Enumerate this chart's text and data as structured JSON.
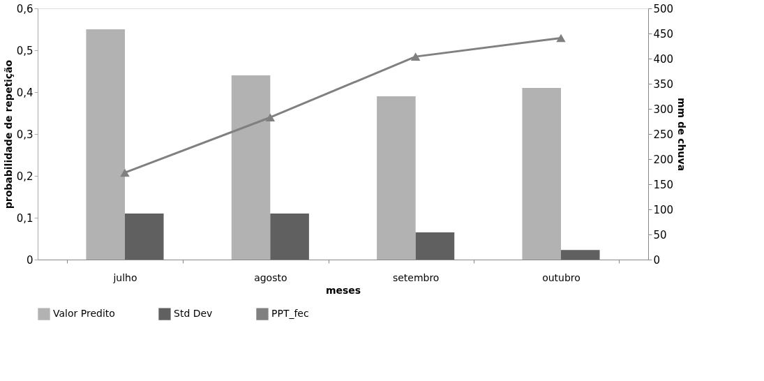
{
  "chart_data": {
    "type": "bar",
    "xlabel": "meses",
    "ylabel": "probabilidade de repetição",
    "y2label": "mm de chuva",
    "categories": [
      "julho",
      "agosto",
      "setembro",
      "outubro"
    ],
    "series": [
      {
        "name": "Valor Predito",
        "color": "#b2b2b2",
        "values": [
          0.55,
          0.44,
          0.39,
          0.41
        ]
      },
      {
        "name": "Std Dev",
        "color": "#606060",
        "values": [
          0.11,
          0.11,
          0.065,
          0.023
        ]
      },
      {
        "name": "PPT_fec",
        "color": "#808080",
        "type": "line",
        "axis": "y2",
        "marker": "triangle",
        "values": [
          173,
          283,
          404,
          441
        ]
      }
    ],
    "ylim": [
      0,
      0.6
    ],
    "yticks": [
      0,
      {
        "value": 0.1,
        "label": "0,1"
      },
      {
        "value": 0.2,
        "label": "0,2"
      },
      {
        "value": 0.3,
        "label": "0,3"
      },
      {
        "value": 0.4,
        "label": "0,4"
      },
      {
        "value": 0.5,
        "label": "0,5"
      },
      {
        "value": 0.6,
        "label": "0,6"
      }
    ],
    "y2lim": [
      0,
      500
    ],
    "y2ticks": [
      0,
      50,
      100,
      150,
      200,
      250,
      300,
      350,
      400,
      450,
      500
    ],
    "grid": false,
    "legend": "bottom"
  }
}
